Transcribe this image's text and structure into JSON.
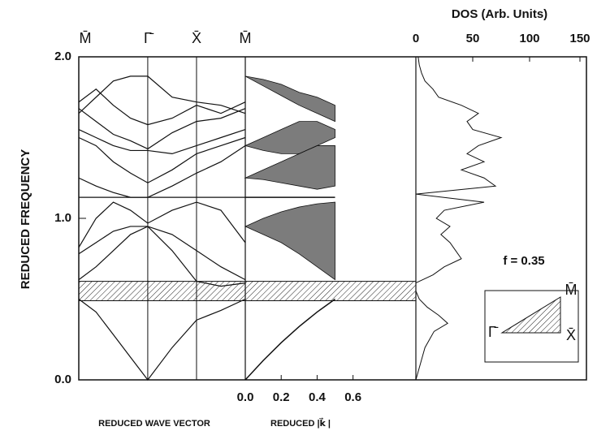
{
  "chart_data": [
    {
      "type": "line",
      "ylabel": "REDUCED FREQUENCY",
      "xlabel": "REDUCED WAVE VECTOR",
      "color": "#111",
      "ylim": [
        0,
        2
      ],
      "yticks": [
        {
          "value": 0,
          "label": "0.0"
        },
        {
          "value": 1,
          "label": "1.0"
        },
        {
          "value": 2,
          "label": "2.0"
        }
      ],
      "xlim": [
        0,
        1.707
      ],
      "xticks": [
        {
          "value": 0,
          "label": "M̄"
        },
        {
          "value": 0.707,
          "label": "Γ̄"
        },
        {
          "value": 1.207,
          "label": "X̄"
        },
        {
          "value": 1.707,
          "label": "M̄"
        }
      ],
      "gap": [
        0.49,
        0.61
      ],
      "x": [
        0,
        0.177,
        0.354,
        0.53,
        0.707,
        0.957,
        1.207,
        1.457,
        1.707
      ],
      "series": [
        {
          "values": [
            0.5,
            0.42,
            0.28,
            0.14,
            0,
            0.2,
            0.37,
            0.43,
            0.5
          ]
        },
        {
          "values": [
            0.62,
            0.7,
            0.8,
            0.9,
            0.95,
            0.8,
            0.61,
            0.58,
            0.6
          ]
        },
        {
          "values": [
            0.78,
            0.85,
            0.92,
            0.95,
            0.95,
            0.9,
            0.8,
            0.7,
            0.62
          ]
        },
        {
          "values": [
            0.82,
            1.0,
            1.1,
            1.05,
            0.97,
            1.05,
            1.1,
            1.05,
            0.85
          ]
        },
        {
          "values": [
            1.13,
            1.13,
            1.13,
            1.13,
            1.13,
            1.13,
            1.13,
            1.13,
            1.13
          ]
        },
        {
          "values": [
            1.25,
            1.2,
            1.16,
            1.13,
            1.13,
            1.2,
            1.28,
            1.35,
            1.45
          ]
        },
        {
          "values": [
            1.5,
            1.45,
            1.35,
            1.28,
            1.22,
            1.3,
            1.4,
            1.45,
            1.5
          ]
        },
        {
          "values": [
            1.55,
            1.5,
            1.45,
            1.42,
            1.42,
            1.4,
            1.45,
            1.5,
            1.55
          ]
        },
        {
          "values": [
            1.68,
            1.6,
            1.52,
            1.48,
            1.43,
            1.53,
            1.6,
            1.62,
            1.68
          ]
        },
        {
          "values": [
            1.72,
            1.8,
            1.7,
            1.62,
            1.58,
            1.62,
            1.7,
            1.65,
            1.72
          ]
        },
        {
          "values": [
            1.65,
            1.75,
            1.85,
            1.88,
            1.88,
            1.75,
            1.72,
            1.7,
            1.65
          ]
        }
      ]
    },
    {
      "type": "area",
      "xlabel": "REDUCED  |k⃗ |",
      "color": "#111",
      "xlim": [
        0,
        0.95
      ],
      "xticks": [
        {
          "value": 0,
          "label": "0.0"
        },
        {
          "value": 0.2,
          "label": "0.2"
        },
        {
          "value": 0.4,
          "label": "0.4"
        },
        {
          "value": 0.6,
          "label": "0.6"
        }
      ],
      "x": [
        0,
        0.1,
        0.2,
        0.3,
        0.4,
        0.5
      ],
      "lines": [
        {
          "values": [
            0,
            0.12,
            0.23,
            0.33,
            0.42,
            0.5
          ]
        },
        {
          "values": [
            1.13,
            1.13,
            1.13,
            1.13,
            1.13,
            1.13
          ]
        }
      ],
      "regions": [
        {
          "lower": [
            0.95,
            0.9,
            0.85,
            0.78,
            0.7,
            0.62
          ],
          "upper": [
            0.95,
            1.0,
            1.04,
            1.07,
            1.09,
            1.1
          ]
        },
        {
          "lower": [
            1.25,
            1.24,
            1.22,
            1.2,
            1.18,
            1.2
          ],
          "upper": [
            1.25,
            1.3,
            1.35,
            1.4,
            1.45,
            1.45
          ]
        },
        {
          "lower": [
            1.45,
            1.42,
            1.4,
            1.4,
            1.45,
            1.5
          ],
          "upper": [
            1.45,
            1.5,
            1.55,
            1.6,
            1.6,
            1.55
          ]
        },
        {
          "lower": [
            1.88,
            1.82,
            1.76,
            1.7,
            1.65,
            1.6
          ],
          "upper": [
            1.88,
            1.86,
            1.83,
            1.78,
            1.75,
            1.7
          ]
        }
      ]
    },
    {
      "type": "dos",
      "title": "DOS (Arb. Units)",
      "annotation": "f = 0.35",
      "color": "#111",
      "xlim": [
        0,
        150
      ],
      "xticks": [
        0,
        50,
        100,
        150
      ],
      "inset_labels": [
        "M̄",
        "Γ̄",
        "X̄"
      ],
      "frequencies": [
        0,
        0.05,
        0.1,
        0.15,
        0.2,
        0.25,
        0.3,
        0.35,
        0.4,
        0.45,
        0.5,
        0.55,
        0.6,
        0.65,
        0.7,
        0.75,
        0.8,
        0.85,
        0.9,
        0.95,
        1.0,
        1.05,
        1.1,
        1.15,
        1.2,
        1.25,
        1.3,
        1.35,
        1.4,
        1.45,
        1.5,
        1.55,
        1.6,
        1.65,
        1.7,
        1.75,
        1.8,
        1.85,
        1.9,
        1.95,
        2.0
      ],
      "values": [
        0,
        2,
        4,
        6,
        8,
        12,
        16,
        28,
        20,
        10,
        3,
        0,
        0,
        15,
        25,
        40,
        35,
        30,
        22,
        30,
        18,
        25,
        60,
        0,
        70,
        60,
        40,
        60,
        45,
        55,
        75,
        50,
        45,
        55,
        40,
        20,
        15,
        8,
        5,
        3,
        2
      ]
    }
  ]
}
